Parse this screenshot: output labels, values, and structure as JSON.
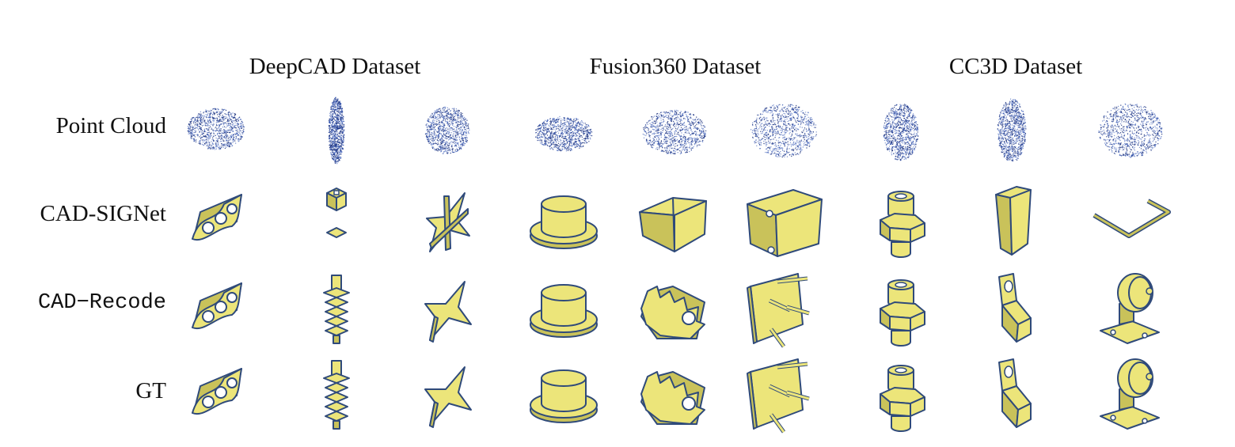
{
  "columns": [
    {
      "title": "DeepCAD Dataset"
    },
    {
      "title": "Fusion360 Dataset"
    },
    {
      "title": "CC3D Dataset"
    }
  ],
  "rows": [
    {
      "label": "Point Cloud",
      "style": "serif",
      "render": "points"
    },
    {
      "label": "CAD-SIGNet",
      "style": "serif",
      "render": "solid"
    },
    {
      "label": "CAD−Recode",
      "style": "mono",
      "render": "solid"
    },
    {
      "label": "GT",
      "style": "serif",
      "render": "solid"
    }
  ],
  "shapes": [
    [
      "plate-holes",
      "column-stack",
      "star",
      "hat",
      "block-split",
      "box",
      "column-hex",
      "tall-block",
      "rail"
    ],
    [
      "plate-holes",
      "small-cube",
      "star-cross",
      "hat",
      "block-split",
      "box",
      "column-hex",
      "tall-block",
      "rail"
    ],
    [
      "plate-holes",
      "column-stack",
      "star",
      "hat",
      "gear",
      "plate-pins",
      "column-hex",
      "bracket",
      "caster"
    ],
    [
      "plate-holes",
      "column-stack",
      "star",
      "hat",
      "gear",
      "plate-pins",
      "column-hex",
      "bracket",
      "caster"
    ]
  ],
  "colors": {
    "solid_fill": "#ece57a",
    "solid_shade": "#c9c25a",
    "edge": "#2f4a7a",
    "points": "#2a4fb0"
  }
}
